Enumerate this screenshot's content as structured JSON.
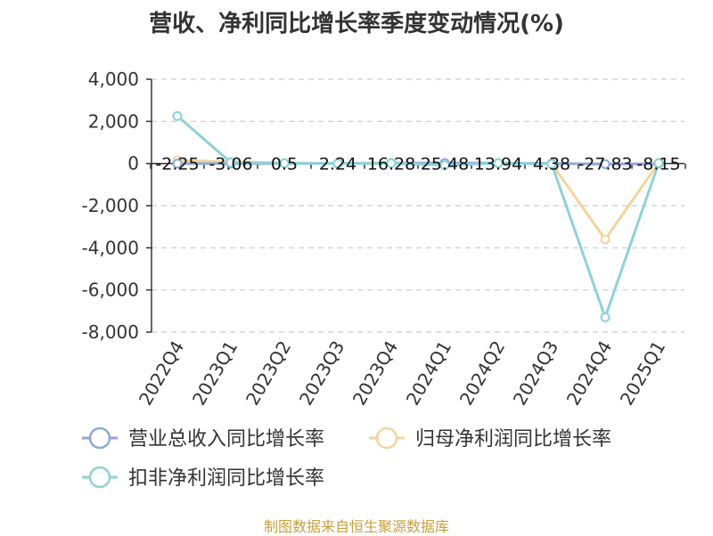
{
  "title": "营收、净利同比增长率季度变动情况(%)",
  "source": "制图数据来自恒生聚源数据库",
  "chart_data": {
    "type": "line",
    "title": "营收、净利同比增长率季度变动情况(%)",
    "categories": [
      "2022Q4",
      "2023Q1",
      "2023Q2",
      "2023Q3",
      "2023Q4",
      "2024Q1",
      "2024Q2",
      "2024Q3",
      "2024Q4",
      "2025Q1"
    ],
    "ylim": [
      -8000,
      4000
    ],
    "yticks": [
      4000,
      2000,
      0,
      -2000,
      -4000,
      -6000,
      -8000
    ],
    "ytick_labels": [
      "4,000",
      "2,000",
      "0",
      "-2,000",
      "-4,000",
      "-6,000",
      "-8,000"
    ],
    "grid": true,
    "legend_position": "bottom",
    "data_labels": [
      "-2.25",
      "-3.06",
      "0.5",
      "2.24",
      "16.28",
      "25.48",
      "13.94",
      "4.38",
      "-27.83",
      "-8.15"
    ],
    "series": [
      {
        "name": "营业总收入同比增长率",
        "color": "#8fa9d6",
        "values": [
          -2.25,
          -3.06,
          0.5,
          2.24,
          16.28,
          25.48,
          13.94,
          4.38,
          -27.83,
          -8.15
        ]
      },
      {
        "name": "归母净利润同比增长率",
        "color": "#f5d49a",
        "values": [
          150,
          80,
          20,
          10,
          30,
          20,
          30,
          -10,
          -3600,
          40
        ]
      },
      {
        "name": "扣非净利润同比增长率",
        "color": "#8dd2d8",
        "values": [
          2250,
          50,
          10,
          0,
          10,
          -80,
          20,
          -20,
          -7300,
          20
        ]
      }
    ]
  }
}
